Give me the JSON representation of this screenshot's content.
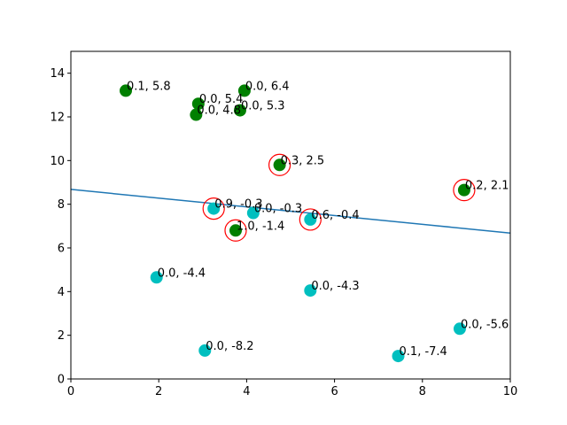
{
  "chart_data": {
    "type": "scatter",
    "title": "",
    "xlabel": "",
    "ylabel": "",
    "xlim": [
      0,
      10
    ],
    "ylim": [
      0,
      15
    ],
    "x_ticks": [
      "0",
      "2",
      "4",
      "6",
      "8",
      "10"
    ],
    "y_ticks": [
      "0",
      "2",
      "4",
      "6",
      "8",
      "10",
      "12",
      "14"
    ],
    "grid": false,
    "colors": {
      "green_class": "#008000",
      "cyan_class": "#00bfbf",
      "highlight_ring": "#ff0000",
      "decision_line": "#1f77b4",
      "axes": "#000000"
    },
    "decision_line": {
      "x": [
        0,
        10
      ],
      "y": [
        8.68,
        6.68
      ]
    },
    "points": [
      {
        "x": 1.25,
        "y": 13.2,
        "class": "green",
        "label": "0.1, 5.8",
        "highlight": false
      },
      {
        "x": 3.95,
        "y": 13.2,
        "class": "green",
        "label": "0.0, 6.4",
        "highlight": false
      },
      {
        "x": 2.9,
        "y": 12.6,
        "class": "green",
        "label": "0.0, 5.4",
        "highlight": false
      },
      {
        "x": 3.85,
        "y": 12.3,
        "class": "green",
        "label": "0.0, 5.3",
        "highlight": false
      },
      {
        "x": 2.85,
        "y": 12.1,
        "class": "green",
        "label": "0.0, 4.8",
        "highlight": false
      },
      {
        "x": 4.75,
        "y": 9.8,
        "class": "green",
        "label": "0.3, 2.5",
        "highlight": true
      },
      {
        "x": 8.95,
        "y": 8.65,
        "class": "green",
        "label": "0.2, 2.1",
        "highlight": true
      },
      {
        "x": 3.75,
        "y": 6.8,
        "class": "green",
        "label": "1.0, -1.4",
        "highlight": true
      },
      {
        "x": 3.25,
        "y": 7.8,
        "class": "cyan",
        "label": "0.9, -0.3",
        "highlight": true
      },
      {
        "x": 4.15,
        "y": 7.6,
        "class": "cyan",
        "label": "0.0, -0.3",
        "highlight": false
      },
      {
        "x": 5.45,
        "y": 7.3,
        "class": "cyan",
        "label": "0.6, -0.4",
        "highlight": true
      },
      {
        "x": 1.95,
        "y": 4.65,
        "class": "cyan",
        "label": "0.0, -4.4",
        "highlight": false
      },
      {
        "x": 5.45,
        "y": 4.05,
        "class": "cyan",
        "label": "0.0, -4.3",
        "highlight": false
      },
      {
        "x": 3.05,
        "y": 1.3,
        "class": "cyan",
        "label": "0.0, -8.2",
        "highlight": false
      },
      {
        "x": 7.45,
        "y": 1.05,
        "class": "cyan",
        "label": "0.1, -7.4",
        "highlight": false
      },
      {
        "x": 8.85,
        "y": 2.3,
        "class": "cyan",
        "label": "0.0, -5.6",
        "highlight": false
      }
    ]
  }
}
